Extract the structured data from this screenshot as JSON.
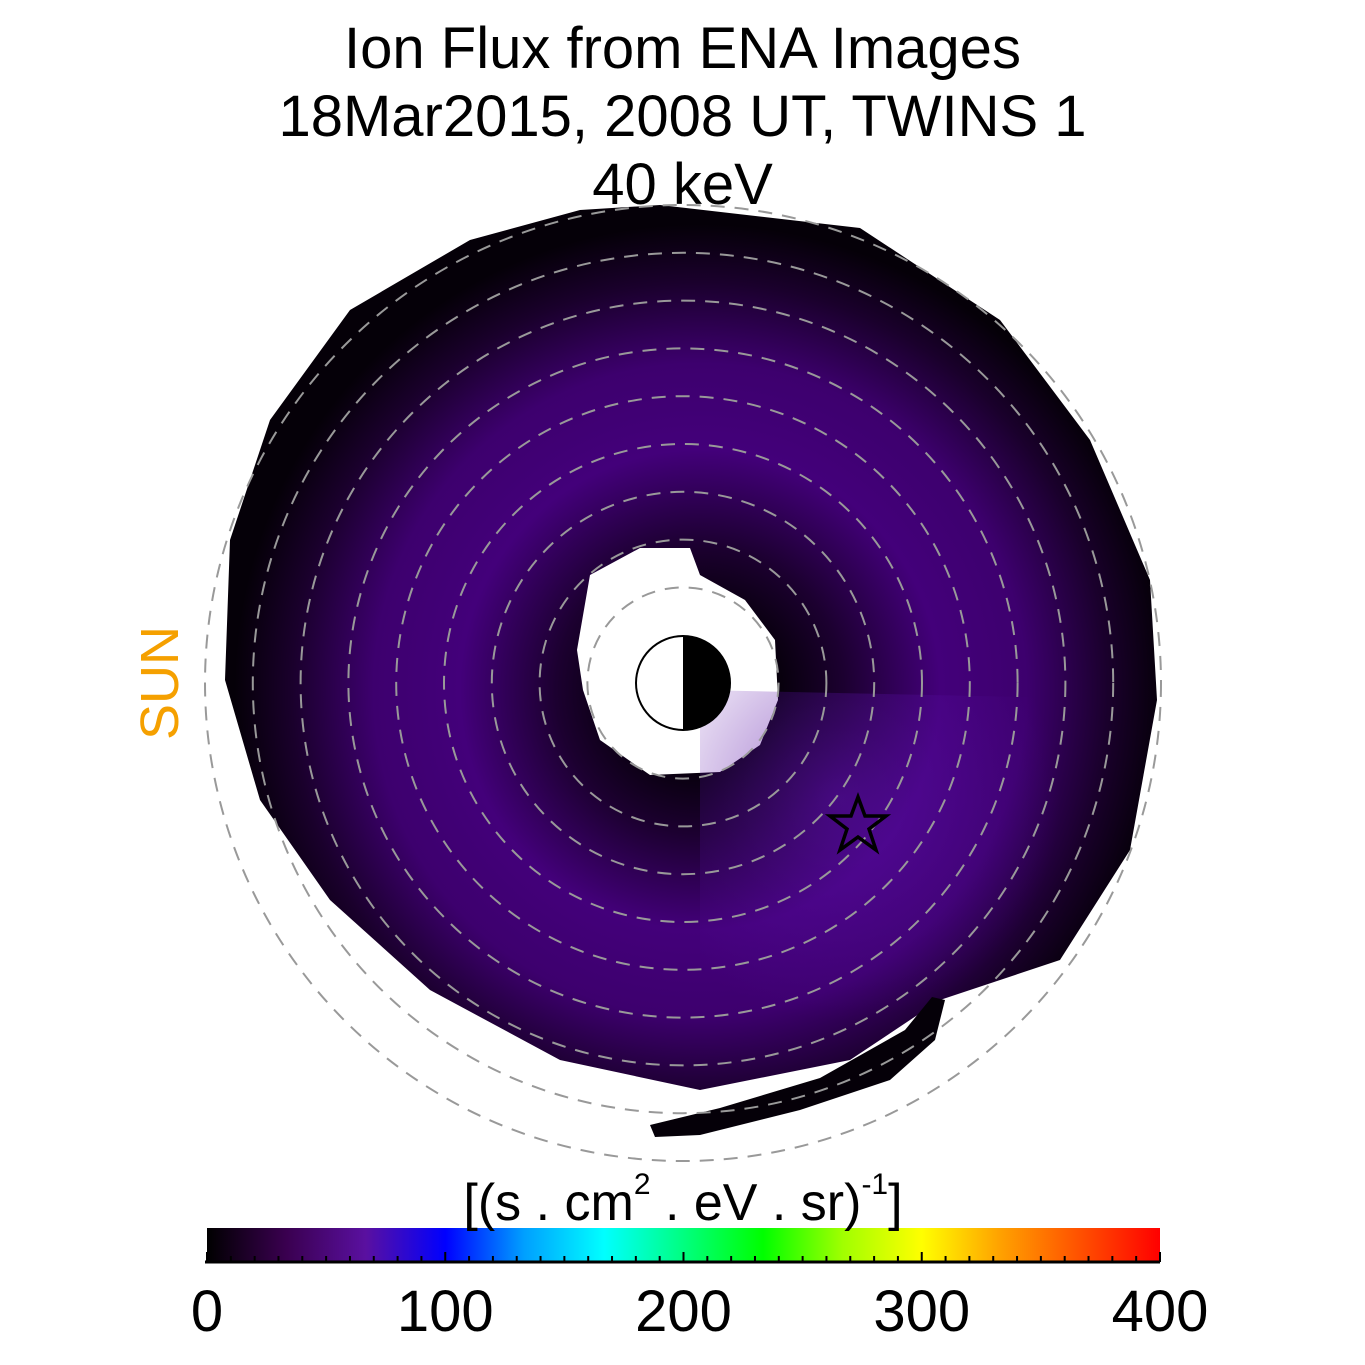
{
  "chart_data": {
    "type": "heatmap",
    "title": [
      "Ion Flux from  ENA Images",
      "18Mar2015, 2008 UT,  TWINS 1",
      "40 keV"
    ],
    "projection": "polar equatorial plane, sun to the left",
    "sun_label": "SUN",
    "radial_grid_re": [
      2,
      3,
      4,
      5,
      6,
      7,
      8,
      9,
      10
    ],
    "colorbar": {
      "label_parts": [
        "[(s . cm",
        "2",
        " . eV . sr)",
        "-1",
        "]"
      ],
      "range": [
        0,
        400
      ],
      "major_ticks": [
        0,
        100,
        200,
        300,
        400
      ],
      "tick_labels": [
        "0",
        "100",
        "200",
        "300",
        "400"
      ],
      "minor_tick_step": 10,
      "colors": [
        "#000000",
        "#3a0050",
        "#5a10a0",
        "#0000ff",
        "#00a0ff",
        "#00ffff",
        "#00ff80",
        "#00ff00",
        "#a0ff00",
        "#ffff00",
        "#ffa000",
        "#ff5000",
        "#ff0000"
      ]
    },
    "flux_summary": {
      "max_approx": 55,
      "peak_location": "dusk-midnight sector near star marker"
    }
  }
}
